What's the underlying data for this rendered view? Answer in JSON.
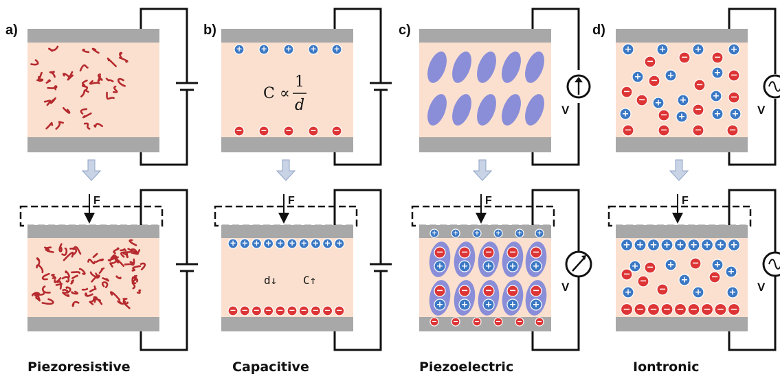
{
  "panels": [
    {
      "id": "a",
      "letter": "a)",
      "caption": "Piezoresistive",
      "force_label": "F"
    },
    {
      "id": "b",
      "letter": "b)",
      "caption": "Capacitive",
      "force_label": "F",
      "formula": {
        "lhs": "C ∝",
        "numerator": "1",
        "denominator": "d"
      },
      "annotations": {
        "d_change": "d↓",
        "c_change": "C↑"
      }
    },
    {
      "id": "c",
      "letter": "c)",
      "caption": "Piezoelectric",
      "force_label": "F",
      "voltage_label_top": "V",
      "voltage_label_bottom": "V"
    },
    {
      "id": "d",
      "letter": "d)",
      "caption": "Iontronic",
      "force_label": "F",
      "voltage_label_top": "V",
      "voltage_label_bottom": "V"
    }
  ],
  "symbols": {
    "plus": "+",
    "minus": "−"
  },
  "colors": {
    "electrode": "#a8a8a8",
    "dielectric": "#fbe0cf",
    "fiber": "#b52a2e",
    "cation": "#3b78c4",
    "anion": "#dd3535",
    "dipole": "#8a8ed8",
    "arrow": "#c9d3e6",
    "wire": "#111111"
  }
}
